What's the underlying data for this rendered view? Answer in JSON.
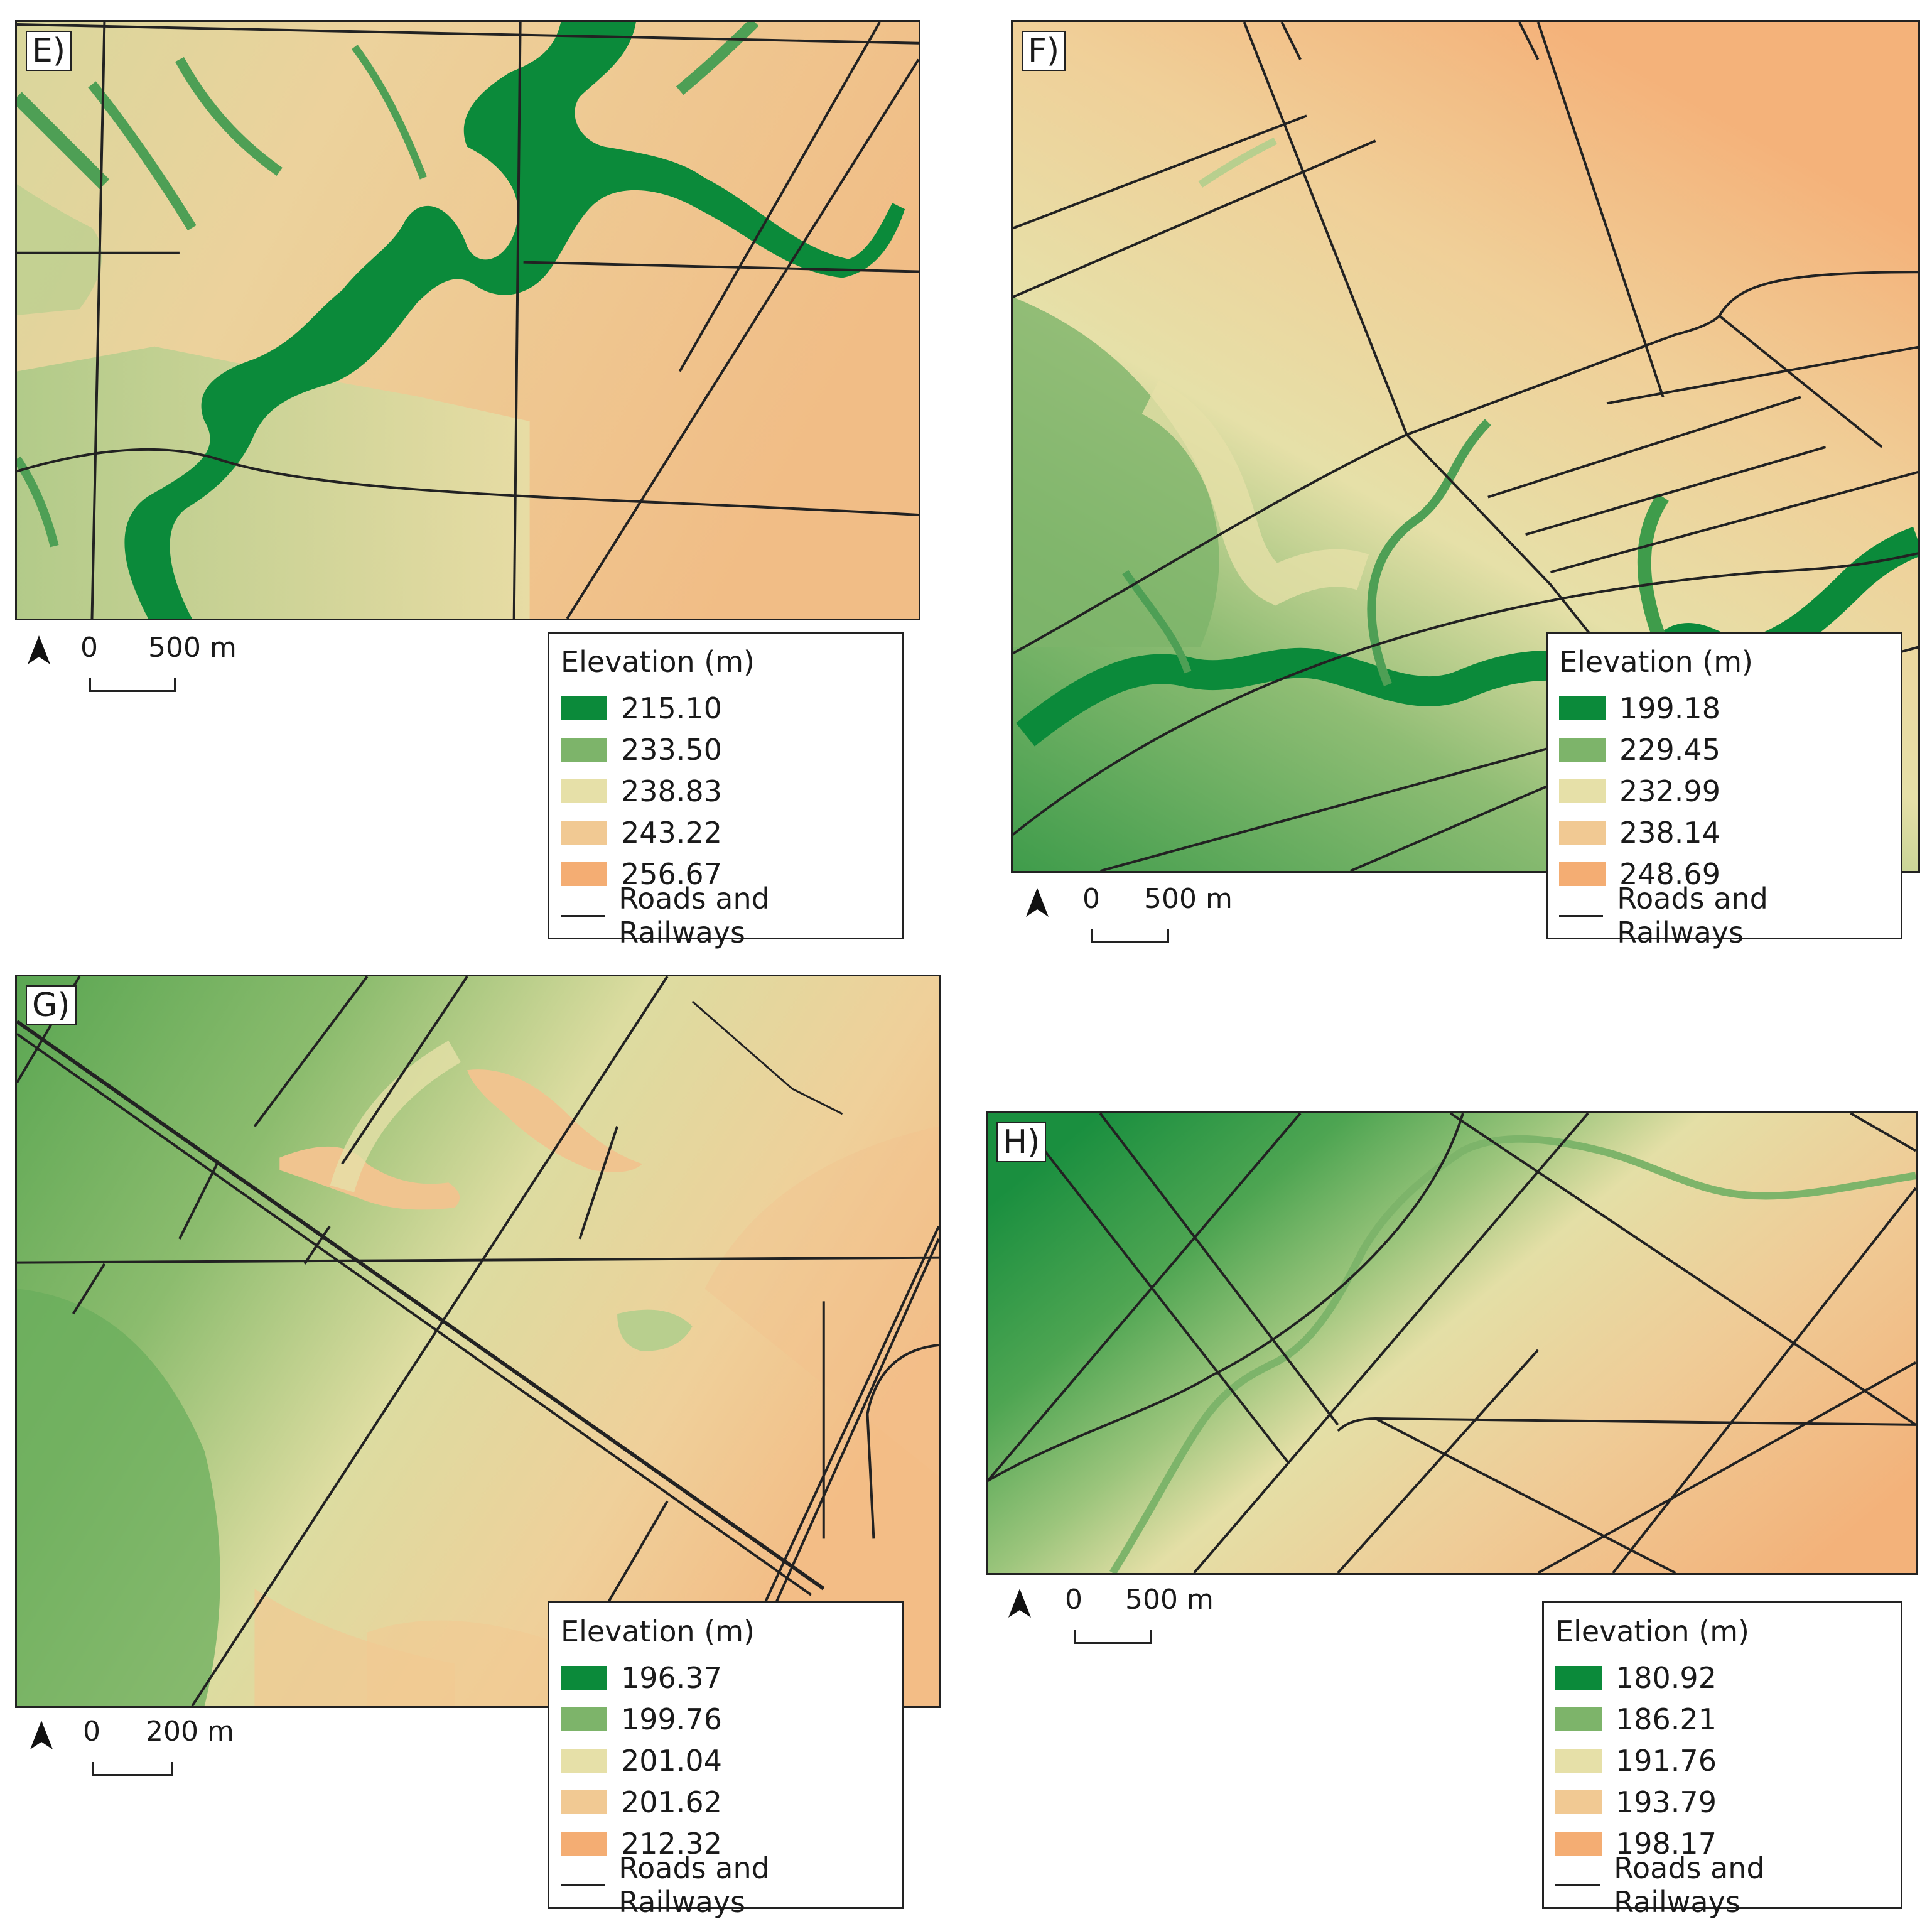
{
  "colors": {
    "c1": "#0b8a3a",
    "c2": "#7db46a",
    "c3": "#e6e0a8",
    "c4": "#f1c993",
    "c5": "#f4ad73",
    "road": "#222222"
  },
  "legend_title": "Elevation (m)",
  "roads_label": "Roads and Railways",
  "panels": [
    {
      "id": "E",
      "label": "E)",
      "scale": {
        "zero": "0",
        "dist": "500 m"
      },
      "legend": [
        "215.10",
        "233.50",
        "238.83",
        "243.22",
        "256.67"
      ]
    },
    {
      "id": "F",
      "label": "F)",
      "scale": {
        "zero": "0",
        "dist": "500 m"
      },
      "legend": [
        "199.18",
        "229.45",
        "232.99",
        "238.14",
        "248.69"
      ]
    },
    {
      "id": "G",
      "label": "G)",
      "scale": {
        "zero": "0",
        "dist": "200 m"
      },
      "legend": [
        "196.37",
        "199.76",
        "201.04",
        "201.62",
        "212.32"
      ]
    },
    {
      "id": "H",
      "label": "H)",
      "scale": {
        "zero": "0",
        "dist": "500 m"
      },
      "legend": [
        "180.92",
        "186.21",
        "191.76",
        "193.79",
        "198.17"
      ]
    }
  ]
}
